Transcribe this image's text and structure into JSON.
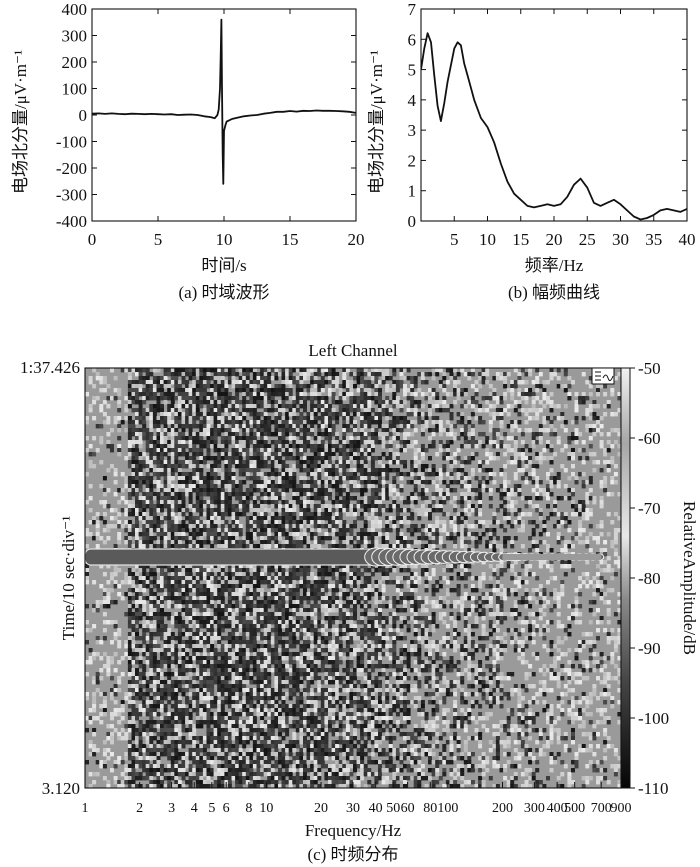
{
  "chart_data": [
    {
      "type": "line",
      "panel": "a",
      "caption": "(a) 时域波形",
      "xlabel": "时间/s",
      "ylabel": "电场北分量/μV·m⁻¹",
      "xlim": [
        0,
        20
      ],
      "ylim": [
        -400,
        400
      ],
      "xticks": [
        0,
        5,
        10,
        15,
        20
      ],
      "yticks": [
        400,
        300,
        200,
        100,
        0,
        -100,
        -200,
        -300,
        -400
      ],
      "grid": false,
      "x": [
        0,
        0.5,
        1,
        1.5,
        2,
        2.5,
        3,
        3.5,
        4,
        4.5,
        5,
        5.5,
        6,
        6.5,
        7,
        7.5,
        8,
        8.5,
        9,
        9.3,
        9.5,
        9.6,
        9.7,
        9.75,
        9.8,
        9.85,
        9.9,
        9.95,
        10.0,
        10.1,
        10.2,
        10.4,
        10.6,
        11,
        11.5,
        12,
        12.5,
        13,
        13.5,
        14,
        14.5,
        15,
        15.5,
        16,
        16.5,
        17,
        17.5,
        18,
        18.5,
        19,
        19.5,
        20
      ],
      "y": [
        5,
        6,
        4,
        6,
        4,
        3,
        5,
        4,
        3,
        4,
        3,
        2,
        3,
        0,
        1,
        2,
        0,
        -5,
        -8,
        -12,
        0,
        20,
        100,
        220,
        360,
        100,
        -150,
        -260,
        -60,
        -40,
        -25,
        -20,
        -15,
        -10,
        -5,
        -2,
        0,
        5,
        8,
        12,
        12,
        15,
        13,
        16,
        15,
        17,
        16,
        16,
        15,
        14,
        12,
        8
      ]
    },
    {
      "type": "line",
      "panel": "b",
      "caption": "(b) 幅频曲线",
      "xlabel": "频率/Hz",
      "ylabel": "电场北分量/μV·m⁻¹",
      "xlim": [
        0,
        40
      ],
      "ylim": [
        0,
        7
      ],
      "xticks": [
        5,
        10,
        15,
        20,
        25,
        30,
        35,
        40
      ],
      "yticks": [
        7,
        6,
        5,
        4,
        3,
        2,
        1,
        0
      ],
      "grid": false,
      "x": [
        0,
        0.5,
        1,
        1.5,
        2,
        2.5,
        3,
        3.5,
        4,
        5,
        5.5,
        6,
        6.5,
        7,
        7.5,
        8,
        9,
        10,
        11,
        12,
        13,
        14,
        15,
        16,
        17,
        18,
        19,
        20,
        21,
        22,
        23,
        24,
        25,
        26,
        27,
        28,
        29,
        30,
        31,
        32,
        33,
        34,
        35,
        36,
        37,
        38,
        39,
        40
      ],
      "y": [
        5.0,
        5.7,
        6.2,
        5.9,
        4.8,
        3.8,
        3.3,
        3.9,
        4.6,
        5.7,
        5.9,
        5.8,
        5.2,
        4.8,
        4.4,
        4.0,
        3.4,
        3.1,
        2.6,
        1.9,
        1.3,
        0.9,
        0.7,
        0.5,
        0.45,
        0.5,
        0.55,
        0.5,
        0.55,
        0.8,
        1.2,
        1.4,
        1.1,
        0.6,
        0.5,
        0.6,
        0.7,
        0.55,
        0.35,
        0.15,
        0.05,
        0.1,
        0.2,
        0.35,
        0.4,
        0.35,
        0.3,
        0.4
      ]
    },
    {
      "type": "heatmap",
      "panel": "c",
      "title": "Left Channel",
      "caption": "(c) 时频分布",
      "xlabel": "Frequency/Hz",
      "ylabel": "Time/10 sec·div⁻¹",
      "xscale": "log",
      "xlim": [
        1,
        900
      ],
      "xtick_labels": [
        "1",
        "2",
        "3",
        "4",
        "5",
        "6",
        "8",
        "10",
        "20",
        "30",
        "40",
        "50",
        "60",
        "80",
        "100",
        "200",
        "300",
        "400",
        "500",
        "700",
        "900"
      ],
      "xtick_values": [
        1,
        2,
        3,
        4,
        5,
        6,
        8,
        10,
        20,
        30,
        40,
        50,
        60,
        80,
        100,
        200,
        300,
        400,
        500,
        700,
        900
      ],
      "y_top_label": "1:37.426",
      "y_bottom_label": "3.120",
      "colorbar": {
        "label": "RelativeAmplitude/dB",
        "range": [
          -110,
          -50
        ],
        "ticks": [
          -50,
          -60,
          -70,
          -80,
          -90,
          -100,
          -110
        ],
        "colormap": "grayscale"
      },
      "event_band": {
        "time_fraction_from_top": 0.45,
        "freq_range": [
          1,
          700
        ],
        "level_db": -75
      }
    }
  ],
  "colors": {
    "line": "#111111",
    "background": "#ffffff",
    "heat_mid": "#9a9a9a",
    "heat_dark": "#1a1a1a"
  },
  "spectro_icon": "spectrogram-mode-icon"
}
